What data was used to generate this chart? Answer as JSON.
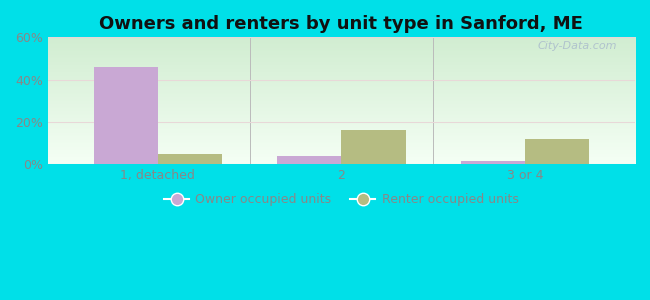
{
  "title": "Owners and renters by unit type in Sanford, ME",
  "categories": [
    "1, detached",
    "2",
    "3 or 4"
  ],
  "owner_values": [
    46,
    4,
    1.5
  ],
  "renter_values": [
    5,
    16,
    12
  ],
  "owner_color": "#c9a8d4",
  "renter_color": "#b5bc82",
  "ylim": [
    0,
    60
  ],
  "yticks": [
    0,
    20,
    40,
    60
  ],
  "ytick_labels": [
    "0%",
    "20%",
    "40%",
    "60%"
  ],
  "bar_width": 0.35,
  "outer_bg": "#00e0e8",
  "legend_owner": "Owner occupied units",
  "legend_renter": "Renter occupied units",
  "watermark": "City-Data.com",
  "title_fontsize": 13,
  "tick_fontsize": 9,
  "legend_fontsize": 9
}
